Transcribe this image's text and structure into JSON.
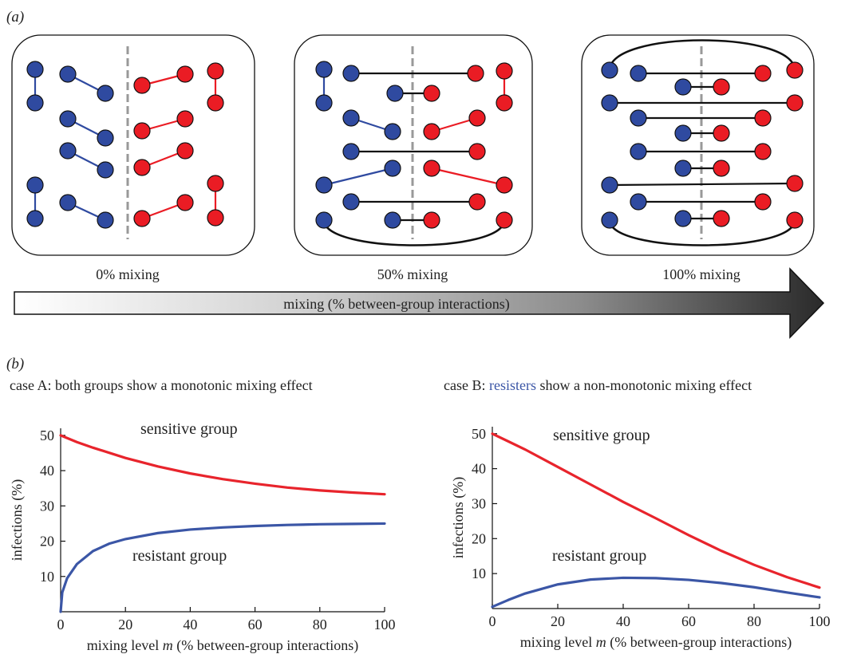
{
  "colors": {
    "sensitive": "#e8242c",
    "resistant": "#3b56a6",
    "node_blue": "#2f4aa0",
    "node_red": "#ea1c24",
    "black_link": "#111111"
  },
  "panel_a": {
    "label": "(a)",
    "panels": [
      {
        "caption": "0% mixing"
      },
      {
        "caption": "50% mixing"
      },
      {
        "caption": "100% mixing"
      }
    ],
    "arrow_label": "mixing (% between-group interactions)"
  },
  "panel_b": {
    "label": "(b)",
    "caseA_title": "case A: both groups show a monotonic mixing effect",
    "caseB_title_pre": "case B: ",
    "caseB_title_highlight": "resisters",
    "caseB_title_post": " show a non-monotonic mixing effect"
  },
  "chart_data": [
    {
      "type": "line",
      "title": "case A: both groups show a monotonic mixing effect",
      "xlabel_pre": "mixing level ",
      "xlabel_var": "m",
      "xlabel_post": " (% between-group interactions)",
      "ylabel": "infections (%)",
      "xlim": [
        0,
        100
      ],
      "ylim": [
        0,
        52
      ],
      "xticks": [
        0,
        20,
        40,
        60,
        80,
        100
      ],
      "yticks": [
        10,
        20,
        30,
        40,
        50
      ],
      "grid": false,
      "series": [
        {
          "name": "sensitive group",
          "color": "#e8242c",
          "x": [
            0,
            5,
            10,
            20,
            30,
            40,
            50,
            60,
            70,
            80,
            90,
            100
          ],
          "y": [
            50,
            48.1,
            46.5,
            43.6,
            41.2,
            39.2,
            37.6,
            36.3,
            35.2,
            34.4,
            33.8,
            33.3
          ]
        },
        {
          "name": "resistant group",
          "color": "#3b56a6",
          "x": [
            0,
            0.5,
            2,
            5,
            10,
            15,
            20,
            30,
            40,
            50,
            60,
            70,
            80,
            90,
            100
          ],
          "y": [
            0,
            5.5,
            9.5,
            13.5,
            17.2,
            19.3,
            20.6,
            22.3,
            23.3,
            23.9,
            24.3,
            24.6,
            24.8,
            24.9,
            25
          ]
        }
      ]
    },
    {
      "type": "line",
      "title": "case B: resisters show a non-monotonic mixing effect",
      "xlabel_pre": "mixing level ",
      "xlabel_var": "m",
      "xlabel_post": " (% between-group interactions)",
      "ylabel": "infections (%)",
      "xlim": [
        0,
        100
      ],
      "ylim": [
        0,
        52
      ],
      "xticks": [
        0,
        20,
        40,
        60,
        80,
        100
      ],
      "yticks": [
        10,
        20,
        30,
        40,
        50
      ],
      "grid": false,
      "series": [
        {
          "name": "sensitive group",
          "color": "#e8242c",
          "x": [
            0,
            10,
            20,
            30,
            40,
            50,
            60,
            70,
            80,
            90,
            100
          ],
          "y": [
            50,
            45.5,
            40.5,
            35.5,
            30.5,
            25.8,
            21,
            16.5,
            12.5,
            9,
            6
          ]
        },
        {
          "name": "resistant group",
          "color": "#3b56a6",
          "x": [
            0,
            5,
            10,
            20,
            30,
            40,
            50,
            60,
            70,
            80,
            90,
            100
          ],
          "y": [
            0.5,
            2.5,
            4.3,
            6.9,
            8.3,
            8.8,
            8.7,
            8.2,
            7.3,
            6.1,
            4.6,
            3.2
          ]
        }
      ]
    }
  ]
}
